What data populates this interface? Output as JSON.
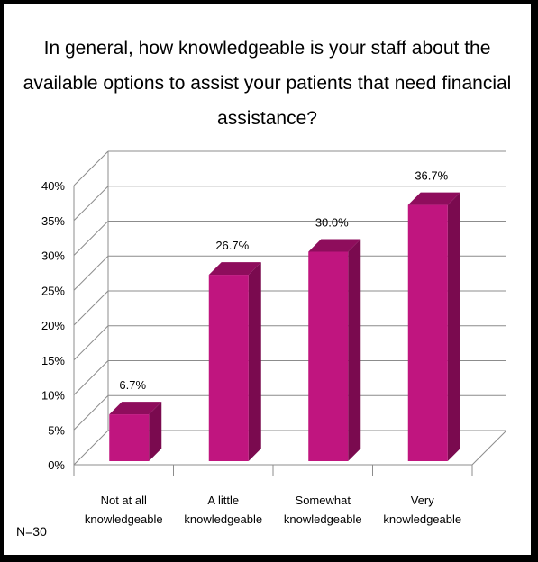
{
  "title": "In general, how knowledgeable is your staff about the available options to assist your patients that need financial assistance?",
  "note": "N=30",
  "chart_data": {
    "type": "bar",
    "title": "In general, how knowledgeable is your staff about the available options to assist your patients that need financial assistance?",
    "categories": [
      [
        "Not at all",
        "knowledgeable"
      ],
      [
        "A little",
        "knowledgeable"
      ],
      [
        "Somewhat",
        "knowledgeable"
      ],
      [
        "Very",
        "knowledgeable"
      ]
    ],
    "values": [
      6.7,
      26.7,
      30.0,
      36.7
    ],
    "data_labels": [
      "6.7%",
      "26.7%",
      "30.0%",
      "36.7%"
    ],
    "ylim": [
      0,
      40
    ],
    "y_ticks": [
      "0%",
      "5%",
      "10%",
      "15%",
      "20%",
      "25%",
      "30%",
      "35%",
      "40%"
    ],
    "grid": true,
    "style": "3d-column",
    "colors": {
      "front": "#C0157F",
      "top": "#8E0D5C",
      "side": "#7A0A4F",
      "grid": "#8c8c8c"
    }
  }
}
